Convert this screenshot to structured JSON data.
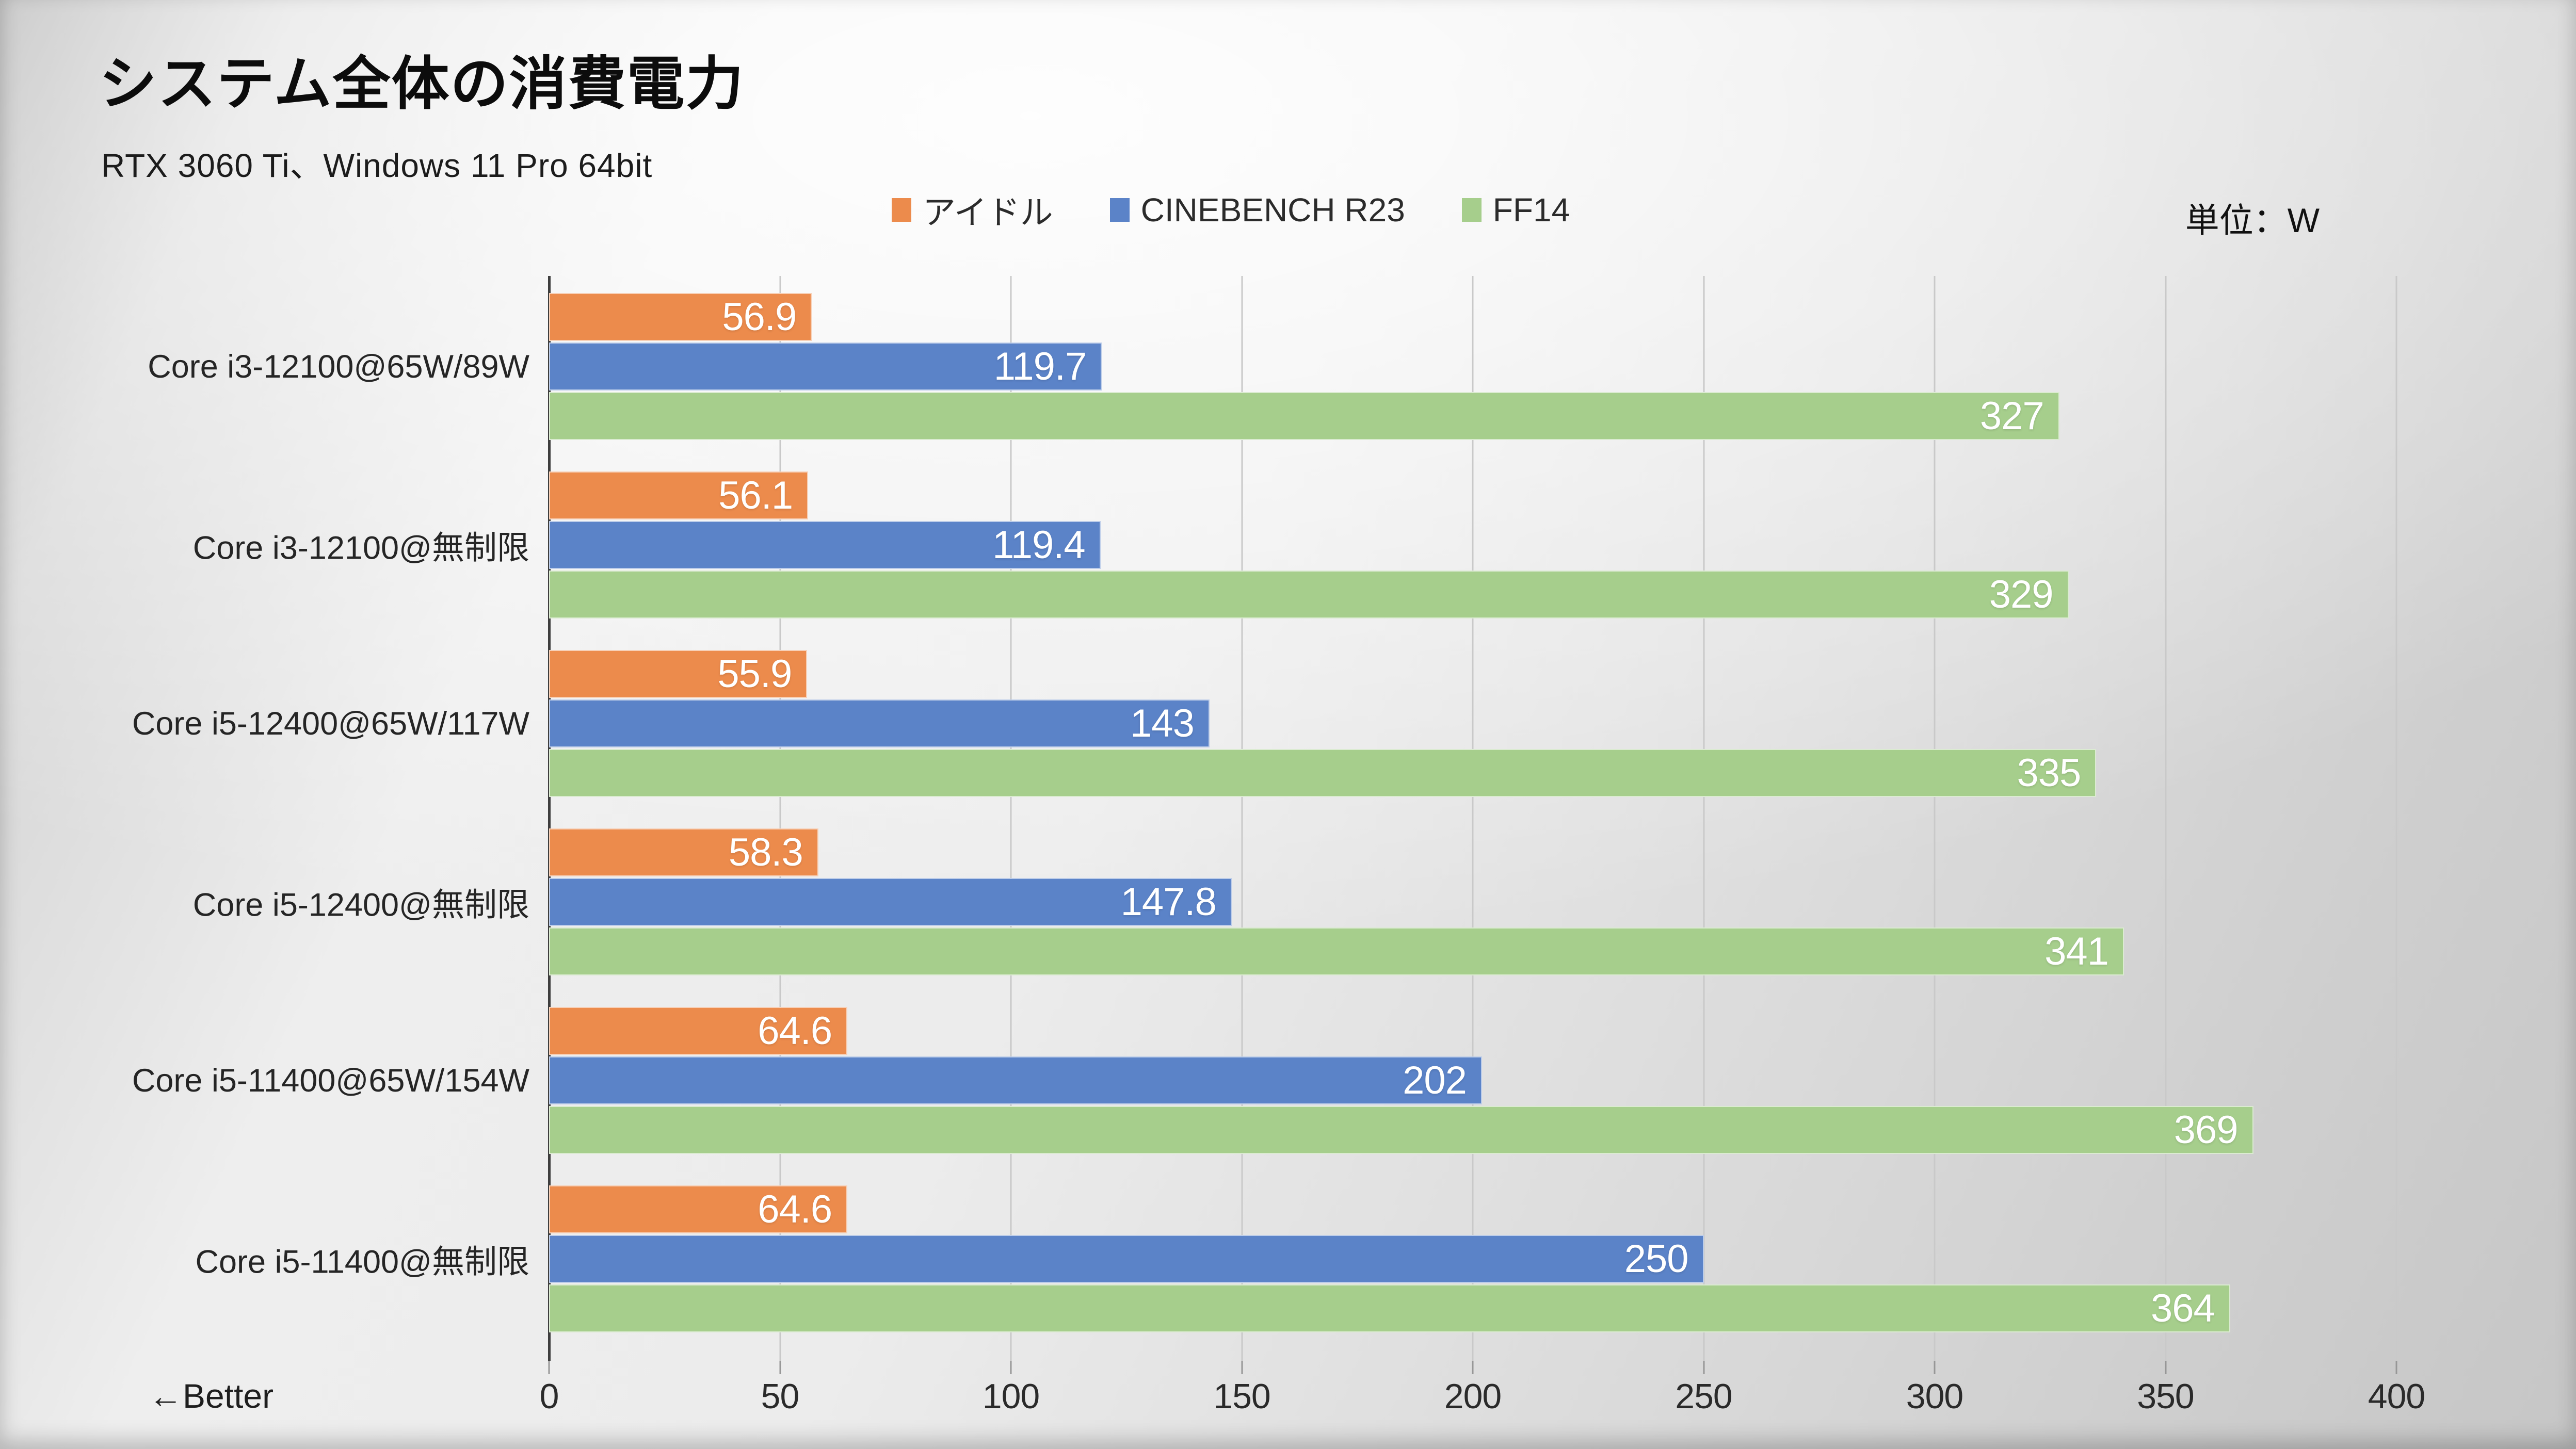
{
  "header": {
    "title": "システム全体の消費電力",
    "subtitle": "RTX 3060 Ti、Windows 11 Pro 64bit",
    "unit_label": "単位：W"
  },
  "axis": {
    "better_label": "←Better",
    "ticks": [
      0,
      50,
      100,
      150,
      200,
      250,
      300,
      350,
      400
    ],
    "max": 400
  },
  "colors": {
    "idle": "#EC8B4C",
    "cinebench": "#5B83C8",
    "ff14": "#A6CE8C",
    "gridline": "#c9c9c9",
    "axis_line": "#3e3e3e"
  },
  "chart_data": {
    "type": "bar",
    "orientation": "horizontal",
    "title": "システム全体の消費電力",
    "subtitle": "RTX 3060 Ti、Windows 11 Pro 64bit",
    "unit": "W",
    "better_direction": "left",
    "xlabel": "",
    "ylabel": "",
    "xlim": [
      0,
      400
    ],
    "x_ticks": [
      0,
      50,
      100,
      150,
      200,
      250,
      300,
      350,
      400
    ],
    "grid": true,
    "legend_position": "top",
    "value_labels": "inside-end",
    "categories": [
      "Core i3-12100@65W/89W",
      "Core i3-12100@無制限",
      "Core i5-12400@65W/117W",
      "Core i5-12400@無制限",
      "Core i5-11400@65W/154W",
      "Core i5-11400@無制限"
    ],
    "series": [
      {
        "name": "アイドル",
        "color": "#EC8B4C",
        "values": [
          56.9,
          56.1,
          55.9,
          58.3,
          64.6,
          64.6
        ]
      },
      {
        "name": "CINEBENCH R23",
        "color": "#5B83C8",
        "values": [
          119.7,
          119.4,
          143,
          147.8,
          202,
          250
        ]
      },
      {
        "name": "FF14",
        "color": "#A6CE8C",
        "values": [
          327,
          329,
          335,
          341,
          369,
          364
        ]
      }
    ]
  }
}
